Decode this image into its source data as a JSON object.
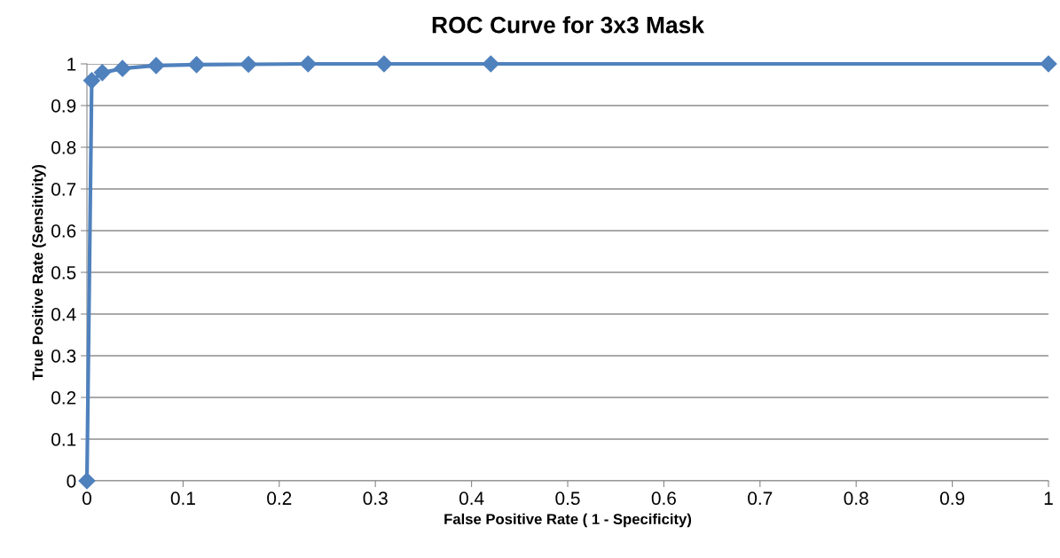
{
  "chart_data": {
    "type": "line",
    "title": "ROC Curve for 3x3 Mask",
    "xlabel": "False Positive Rate ( 1 - Specificity)",
    "ylabel": "True Positive Rate (Sensitivity)",
    "series": [
      {
        "color": "#4f81bd",
        "x": [
          0,
          0.005,
          0.016,
          0.037,
          0.072,
          0.114,
          0.168,
          0.23,
          0.309,
          0.42,
          1
        ],
        "values": [
          0,
          0.96,
          0.979,
          0.989,
          0.996,
          0.998,
          0.999,
          1,
          1,
          1,
          1
        ]
      }
    ],
    "xlim": [
      0,
      1
    ],
    "xticks": [
      0,
      0.1,
      0.2,
      0.3,
      0.4,
      0.5,
      0.6,
      0.7,
      0.8,
      0.9,
      1
    ],
    "ylim": [
      0,
      1
    ],
    "yticks": [
      0,
      0.1,
      0.2,
      0.3,
      0.4,
      0.5,
      0.6,
      0.7,
      0.8,
      0.9,
      1
    ],
    "grid": "y",
    "marker": "diamond",
    "line_style": "solid",
    "legend": false
  }
}
